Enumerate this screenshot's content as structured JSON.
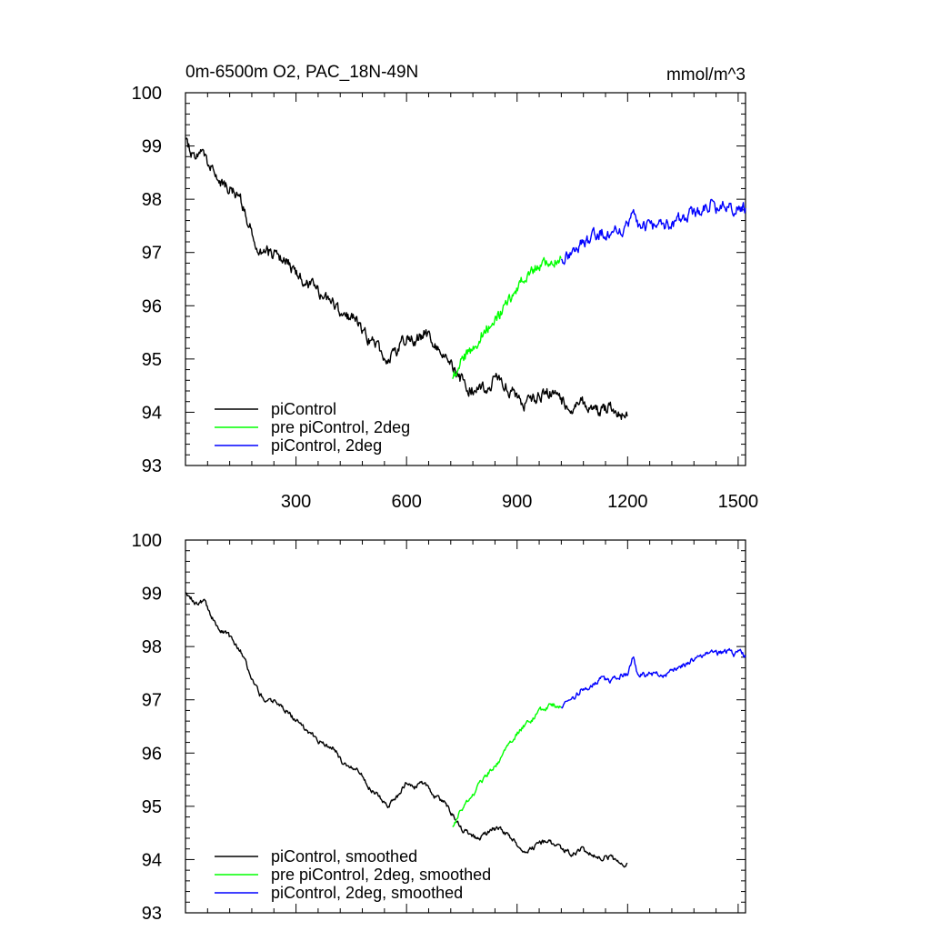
{
  "chart_data": [
    {
      "type": "line",
      "panel": "top",
      "title": "0m-6500m O2, PAC_18N-49N",
      "units": "mmol/m^3",
      "xlim": [
        0,
        1520
      ],
      "ylim": [
        93,
        100
      ],
      "xticks": [
        300,
        600,
        900,
        1200,
        1500
      ],
      "xtick_labels": [
        "300",
        "600",
        "900",
        "1200",
        "1500"
      ],
      "yticks": [
        93,
        94,
        95,
        96,
        97,
        98,
        99,
        100
      ],
      "ytick_labels": [
        "93",
        "94",
        "95",
        "96",
        "97",
        "98",
        "99",
        "100"
      ],
      "legend_position": "bottom-left",
      "grid": false,
      "series": [
        {
          "name": "piControl",
          "color": "#000000",
          "x": [
            1,
            25,
            50,
            75,
            100,
            125,
            150,
            175,
            200,
            225,
            250,
            275,
            300,
            325,
            350,
            375,
            400,
            425,
            450,
            475,
            500,
            525,
            550,
            575,
            600,
            625,
            650,
            675,
            700,
            725,
            750,
            775,
            800,
            825,
            850,
            875,
            900,
            925,
            950,
            975,
            1000,
            1025,
            1050,
            1075,
            1100,
            1125,
            1150,
            1175,
            1200
          ],
          "y": [
            99.1,
            98.8,
            98.9,
            98.5,
            98.3,
            98.15,
            97.95,
            97.5,
            97.1,
            97.0,
            96.95,
            96.8,
            96.6,
            96.45,
            96.3,
            96.15,
            96.1,
            95.85,
            95.75,
            95.65,
            95.35,
            95.2,
            95.0,
            95.15,
            95.45,
            95.35,
            95.5,
            95.2,
            95.1,
            94.85,
            94.6,
            94.45,
            94.4,
            94.55,
            94.6,
            94.45,
            94.3,
            94.15,
            94.25,
            94.4,
            94.35,
            94.2,
            94.1,
            94.2,
            94.1,
            94.05,
            94.1,
            93.95,
            93.95
          ],
          "noise": 0.12
        },
        {
          "name": "pre piControl, 2deg",
          "color": "#00ff00",
          "x": [
            725,
            750,
            775,
            800,
            825,
            850,
            875,
            900,
            925,
            950,
            975,
            1000,
            1020
          ],
          "y": [
            94.6,
            94.95,
            95.15,
            95.45,
            95.65,
            95.85,
            96.1,
            96.35,
            96.55,
            96.7,
            96.85,
            96.9,
            96.85
          ],
          "noise": 0.12
        },
        {
          "name": "piControl, 2deg",
          "color": "#0000ff",
          "x": [
            1020,
            1050,
            1075,
            1100,
            1125,
            1150,
            1175,
            1200,
            1215,
            1225,
            1250,
            1275,
            1300,
            1325,
            1350,
            1375,
            1400,
            1425,
            1450,
            1475,
            1490,
            1505,
            1520
          ],
          "y": [
            96.85,
            97.0,
            97.2,
            97.25,
            97.4,
            97.35,
            97.45,
            97.5,
            97.8,
            97.5,
            97.45,
            97.5,
            97.45,
            97.55,
            97.65,
            97.75,
            97.8,
            97.9,
            97.85,
            97.95,
            97.85,
            97.9,
            97.8
          ],
          "noise": 0.12
        }
      ]
    },
    {
      "type": "line",
      "panel": "bottom",
      "title": "",
      "units": "",
      "xlim": [
        0,
        1520
      ],
      "ylim": [
        93,
        100
      ],
      "xticks": [
        300,
        600,
        900,
        1200,
        1500
      ],
      "xtick_labels": [],
      "yticks": [
        93,
        94,
        95,
        96,
        97,
        98,
        99,
        100
      ],
      "ytick_labels": [
        "93",
        "94",
        "95",
        "96",
        "97",
        "98",
        "99",
        "100"
      ],
      "legend_position": "bottom-left",
      "grid": false,
      "series": [
        {
          "name": "piControl, smoothed",
          "color": "#000000",
          "x": [
            1,
            25,
            50,
            75,
            100,
            125,
            150,
            175,
            200,
            225,
            250,
            275,
            300,
            325,
            350,
            375,
            400,
            425,
            450,
            475,
            500,
            525,
            550,
            575,
            600,
            625,
            650,
            675,
            700,
            725,
            750,
            775,
            800,
            825,
            850,
            875,
            900,
            925,
            950,
            975,
            1000,
            1025,
            1050,
            1075,
            1100,
            1125,
            1150,
            1175,
            1200
          ],
          "y": [
            99.0,
            98.85,
            98.85,
            98.5,
            98.3,
            98.15,
            97.95,
            97.5,
            97.1,
            97.0,
            96.95,
            96.8,
            96.6,
            96.45,
            96.3,
            96.15,
            96.1,
            95.85,
            95.75,
            95.65,
            95.35,
            95.2,
            95.0,
            95.15,
            95.45,
            95.35,
            95.45,
            95.2,
            95.1,
            94.85,
            94.55,
            94.45,
            94.4,
            94.55,
            94.6,
            94.45,
            94.3,
            94.15,
            94.25,
            94.35,
            94.3,
            94.2,
            94.1,
            94.2,
            94.1,
            94.05,
            94.05,
            93.95,
            93.9
          ],
          "noise": 0.05
        },
        {
          "name": "pre piControl, 2deg, smoothed",
          "color": "#00ff00",
          "x": [
            725,
            750,
            775,
            800,
            825,
            850,
            875,
            900,
            925,
            950,
            975,
            1000,
            1020
          ],
          "y": [
            94.6,
            94.95,
            95.15,
            95.45,
            95.65,
            95.85,
            96.1,
            96.35,
            96.55,
            96.7,
            96.85,
            96.9,
            96.85
          ],
          "noise": 0.05
        },
        {
          "name": "piControl, 2deg, smoothed",
          "color": "#0000ff",
          "x": [
            1020,
            1050,
            1075,
            1100,
            1125,
            1150,
            1175,
            1200,
            1215,
            1225,
            1250,
            1275,
            1300,
            1325,
            1350,
            1375,
            1400,
            1425,
            1450,
            1475,
            1490,
            1505,
            1520
          ],
          "y": [
            96.85,
            97.0,
            97.2,
            97.25,
            97.4,
            97.35,
            97.45,
            97.5,
            97.8,
            97.5,
            97.45,
            97.5,
            97.45,
            97.55,
            97.65,
            97.75,
            97.8,
            97.9,
            97.85,
            97.95,
            97.85,
            97.9,
            97.8
          ],
          "noise": 0.05
        }
      ]
    }
  ]
}
